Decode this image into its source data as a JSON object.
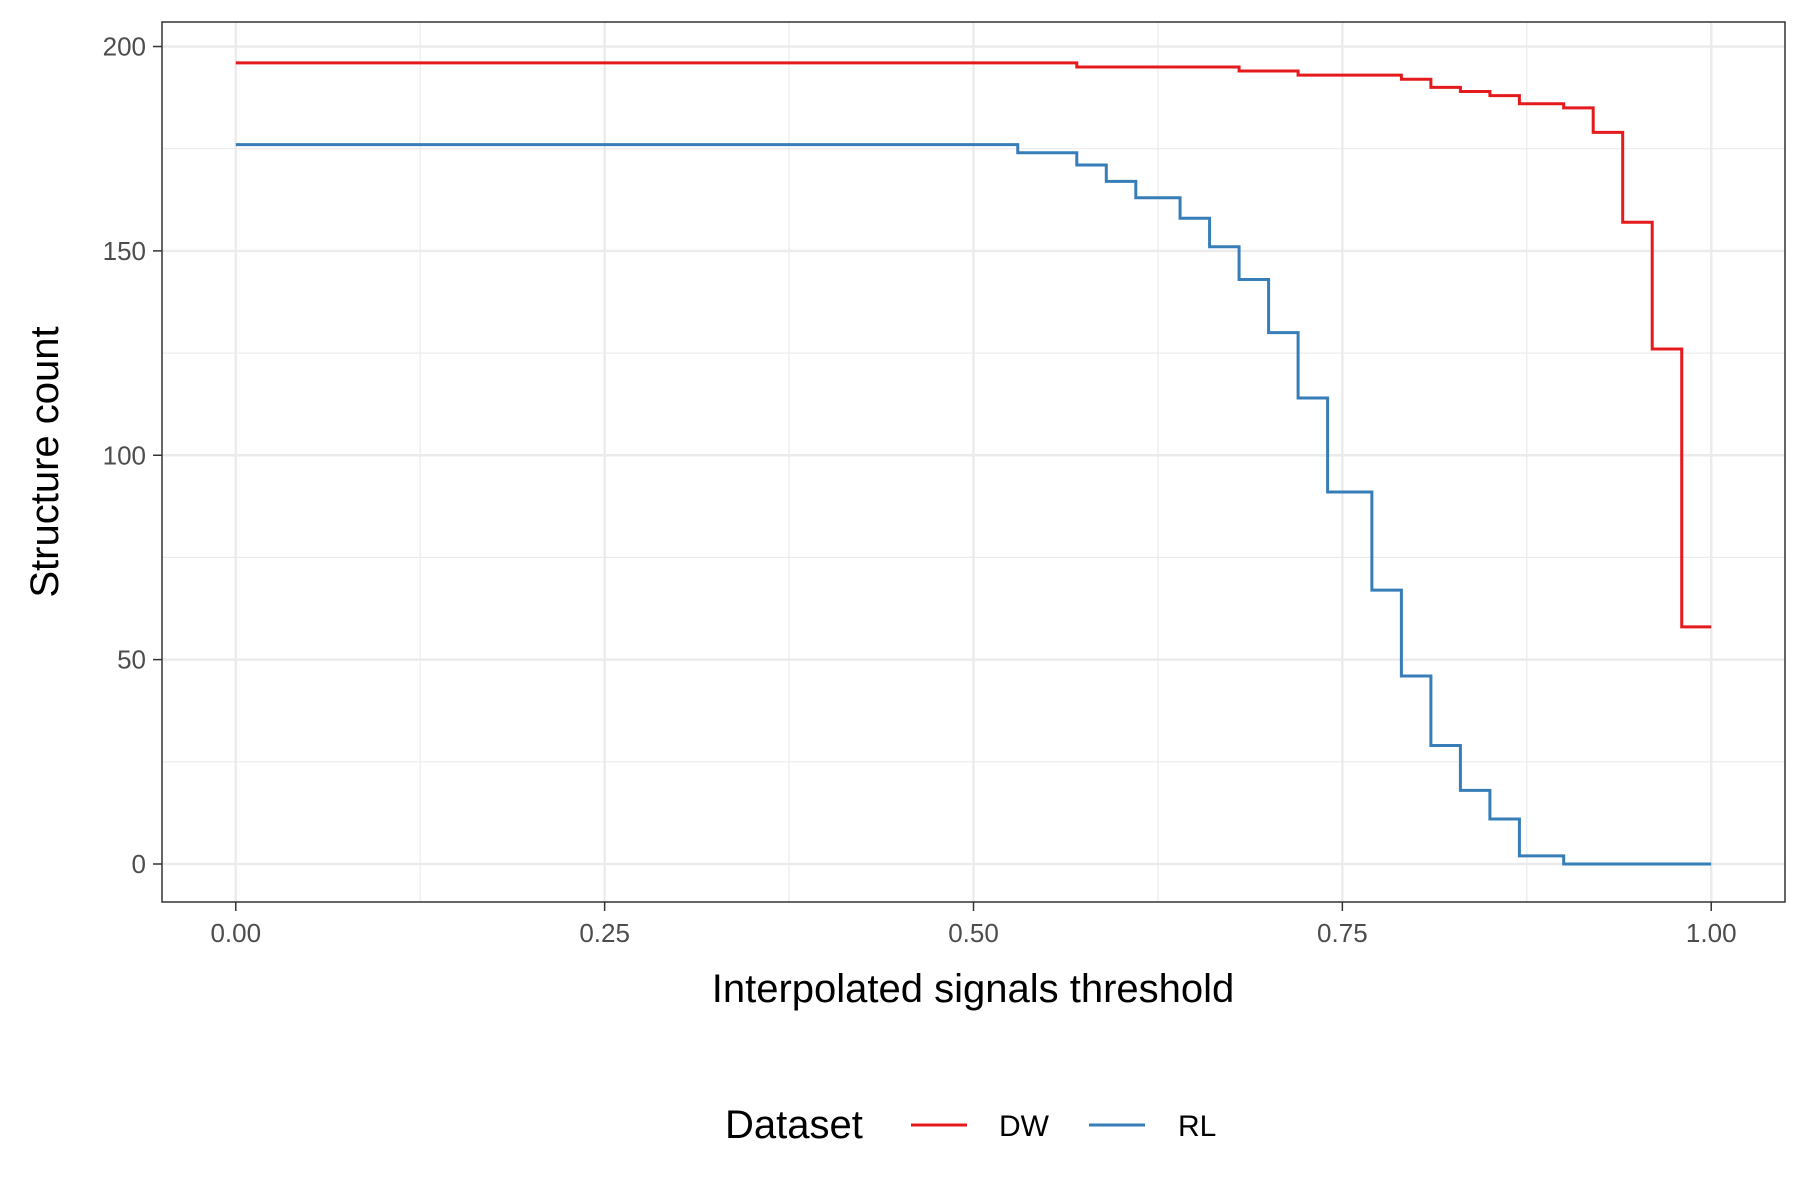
{
  "chart_data": {
    "type": "line",
    "step": true,
    "xlabel": "Interpolated signals threshold",
    "ylabel": "Structure count",
    "xlim": [
      -0.05,
      1.05
    ],
    "ylim": [
      -9.3,
      206
    ],
    "x_ticks": [
      0.0,
      0.25,
      0.5,
      0.75,
      1.0
    ],
    "x_tick_labels": [
      "0.00",
      "0.25",
      "0.50",
      "0.75",
      "1.00"
    ],
    "y_ticks": [
      0,
      50,
      100,
      150,
      200
    ],
    "y_tick_labels": [
      "0",
      "50",
      "100",
      "150",
      "200"
    ],
    "grid": true,
    "legend": {
      "title": "Dataset",
      "placement": "bottom"
    },
    "series": [
      {
        "name": "DW",
        "color": "#e41a1c",
        "x": [
          0.0,
          0.57,
          0.68,
          0.72,
          0.79,
          0.81,
          0.83,
          0.85,
          0.87,
          0.9,
          0.92,
          0.94,
          0.96,
          0.98,
          1.0
        ],
        "y": [
          196,
          195,
          194,
          193,
          192,
          190,
          189,
          188,
          186,
          185,
          179,
          157,
          126,
          58,
          58
        ]
      },
      {
        "name": "RL",
        "color": "#377eb8",
        "x": [
          0.0,
          0.53,
          0.57,
          0.59,
          0.61,
          0.64,
          0.66,
          0.68,
          0.7,
          0.72,
          0.74,
          0.77,
          0.79,
          0.81,
          0.83,
          0.85,
          0.87,
          0.9,
          1.0
        ],
        "y": [
          176,
          174,
          171,
          167,
          163,
          158,
          151,
          143,
          130,
          114,
          91,
          67,
          46,
          29,
          18,
          11,
          2,
          0,
          0
        ]
      }
    ]
  }
}
